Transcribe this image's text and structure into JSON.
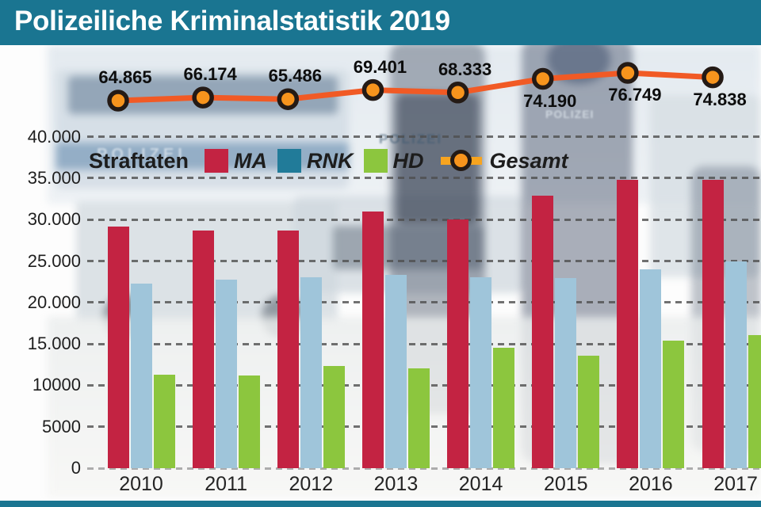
{
  "header": {
    "title": "Polizeiliche Kriminalstatistik 2019",
    "bar_color": "#1a7591"
  },
  "legend": {
    "title": "Straftaten",
    "series": [
      {
        "label": "MA",
        "color": "#c32342"
      },
      {
        "label": "RNK",
        "color": "#217b99"
      },
      {
        "label": "HD",
        "color": "#8cc63e"
      },
      {
        "label": "Gesamt",
        "color": "#f7a41f"
      }
    ]
  },
  "background": {
    "photo_texts": [
      "POLIZEI",
      "POLIZEI",
      "POLIZEI"
    ]
  },
  "chart_data": {
    "type": "bar",
    "title": "Polizeiliche Kriminalstatistik 2019",
    "categories": [
      "2010",
      "2011",
      "2012",
      "2013",
      "2014",
      "2015",
      "2016",
      "2017"
    ],
    "series": [
      {
        "name": "MA",
        "type": "bar",
        "color": "#c32342",
        "values": [
          29200,
          28700,
          28700,
          31000,
          30000,
          32900,
          34800,
          34800
        ]
      },
      {
        "name": "RNK",
        "type": "bar",
        "color": "#9fc5da",
        "values": [
          22300,
          22800,
          23000,
          23300,
          23000,
          22900,
          24000,
          25000
        ]
      },
      {
        "name": "HD",
        "type": "bar",
        "color": "#8cc63e",
        "values": [
          11300,
          11200,
          12300,
          12000,
          14500,
          13600,
          15400,
          16100
        ]
      },
      {
        "name": "Gesamt",
        "type": "line",
        "color": "#f15a25",
        "marker_fill": "#f7941d",
        "marker_ring": "#241a15",
        "values": [
          64865,
          66174,
          65486,
          69401,
          68333,
          74190,
          76749,
          74838
        ],
        "labels": [
          "64.865",
          "66.174",
          "65.486",
          "69.401",
          "68.333",
          "74.190",
          "76.749",
          "74.838"
        ],
        "label_positions": [
          "above",
          "above",
          "above",
          "above",
          "above",
          "below",
          "below",
          "below"
        ]
      }
    ],
    "ylim": [
      0,
      40000
    ],
    "yticks": [
      "0",
      "5000",
      "10000",
      "15.000",
      "20.000",
      "25.000",
      "30.000",
      "35.000",
      "40.000"
    ],
    "grid": "dashed-horizontal",
    "legend_position": "top-inside"
  }
}
